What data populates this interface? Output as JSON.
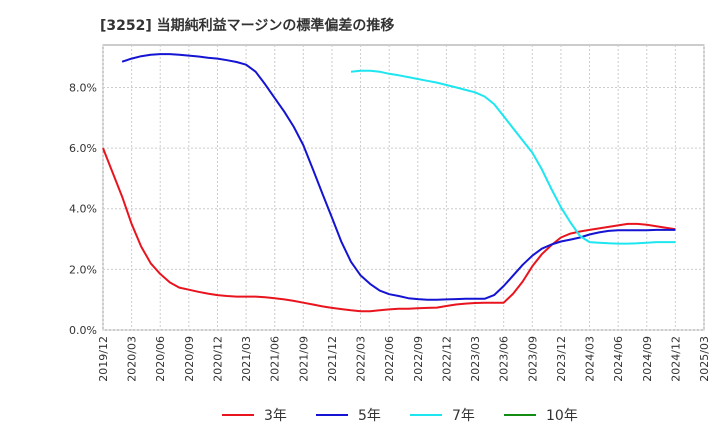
{
  "chart_data": {
    "type": "line",
    "title": "[3252]  当期純利益マージンの標準偏差の推移",
    "xlabel": "",
    "ylabel": "",
    "ylim": [
      0,
      9.4
    ],
    "y_ticks": [
      "0.0%",
      "2.0%",
      "4.0%",
      "6.0%",
      "8.0%"
    ],
    "y_tick_values": [
      0,
      2,
      4,
      6,
      8
    ],
    "x_ticks": [
      "2019/12",
      "2020/03",
      "2020/06",
      "2020/09",
      "2020/12",
      "2021/03",
      "2021/06",
      "2021/09",
      "2021/12",
      "2022/03",
      "2022/06",
      "2022/09",
      "2022/12",
      "2023/03",
      "2023/06",
      "2023/09",
      "2023/12",
      "2024/03",
      "2024/06",
      "2024/09",
      "2024/12",
      "2025/03"
    ],
    "grid": true,
    "legend_position": "bottom",
    "series": [
      {
        "name": "3年",
        "color": "#e8141e",
        "x": [
          0,
          1,
          2,
          3,
          4,
          5,
          6,
          7,
          8,
          9,
          10,
          11,
          12,
          13,
          14,
          15,
          16,
          17,
          18,
          19,
          20,
          21,
          22,
          23,
          24,
          25,
          26,
          27,
          28,
          29,
          30,
          31,
          32,
          33,
          34,
          35,
          36,
          37,
          38,
          39,
          40,
          41,
          42,
          43,
          44,
          45,
          46,
          47,
          48,
          49,
          50,
          51,
          52,
          53,
          54,
          55,
          56,
          57,
          58,
          59,
          60
        ],
        "values": [
          6.0,
          5.2,
          4.4,
          3.5,
          2.75,
          2.2,
          1.85,
          1.57,
          1.4,
          1.33,
          1.26,
          1.2,
          1.15,
          1.12,
          1.1,
          1.1,
          1.1,
          1.08,
          1.05,
          1.01,
          0.96,
          0.9,
          0.84,
          0.78,
          0.73,
          0.69,
          0.65,
          0.62,
          0.62,
          0.65,
          0.68,
          0.7,
          0.7,
          0.72,
          0.73,
          0.74,
          0.79,
          0.84,
          0.87,
          0.89,
          0.9,
          0.9,
          0.9,
          1.2,
          1.6,
          2.1,
          2.5,
          2.8,
          3.05,
          3.18,
          3.25,
          3.3,
          3.35,
          3.4,
          3.45,
          3.5,
          3.5,
          3.47,
          3.42,
          3.37,
          3.32
        ]
      },
      {
        "name": "5年",
        "color": "#1414d2",
        "x": [
          2,
          3,
          4,
          5,
          6,
          7,
          8,
          9,
          10,
          11,
          12,
          13,
          14,
          15,
          16,
          17,
          18,
          19,
          20,
          21,
          22,
          23,
          24,
          25,
          26,
          27,
          28,
          29,
          30,
          31,
          32,
          33,
          34,
          35,
          36,
          37,
          38,
          39,
          40,
          41,
          42,
          43,
          44,
          45,
          46,
          47,
          48,
          49,
          50,
          51,
          52,
          53,
          54,
          55,
          56,
          57,
          58,
          59,
          60
        ],
        "values": [
          8.85,
          8.95,
          9.03,
          9.08,
          9.1,
          9.1,
          9.08,
          9.05,
          9.02,
          8.98,
          8.95,
          8.9,
          8.84,
          8.75,
          8.52,
          8.1,
          7.65,
          7.2,
          6.7,
          6.1,
          5.3,
          4.5,
          3.7,
          2.9,
          2.25,
          1.8,
          1.52,
          1.3,
          1.18,
          1.12,
          1.05,
          1.02,
          1.0,
          1.0,
          1.01,
          1.02,
          1.03,
          1.03,
          1.03,
          1.15,
          1.45,
          1.8,
          2.15,
          2.45,
          2.68,
          2.82,
          2.92,
          2.98,
          3.05,
          3.15,
          3.22,
          3.27,
          3.29,
          3.29,
          3.29,
          3.29,
          3.3,
          3.3,
          3.3
        ]
      },
      {
        "name": "7年",
        "color": "#1ee6f0",
        "x": [
          26,
          27,
          28,
          29,
          30,
          31,
          32,
          33,
          34,
          35,
          36,
          37,
          38,
          39,
          40,
          41,
          42,
          43,
          44,
          45,
          46,
          47,
          48,
          49,
          50,
          51,
          52,
          53,
          54,
          55,
          56,
          57,
          58,
          59,
          60
        ],
        "values": [
          8.52,
          8.55,
          8.55,
          8.52,
          8.45,
          8.4,
          8.34,
          8.28,
          8.22,
          8.16,
          8.08,
          8.0,
          7.92,
          7.84,
          7.7,
          7.45,
          7.05,
          6.65,
          6.25,
          5.85,
          5.3,
          4.65,
          4.05,
          3.55,
          3.1,
          2.9,
          2.88,
          2.86,
          2.85,
          2.85,
          2.86,
          2.88,
          2.9,
          2.9,
          2.9
        ]
      },
      {
        "name": "10年",
        "color": "#148c14",
        "x": [],
        "values": []
      }
    ]
  }
}
